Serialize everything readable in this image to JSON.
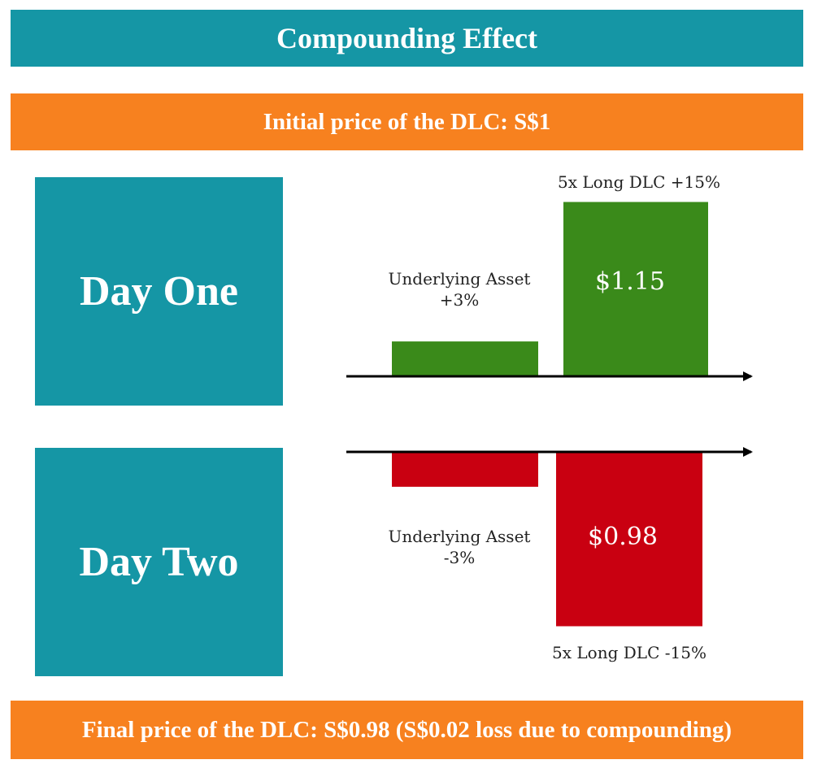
{
  "title": "Compounding Effect",
  "initial_price": "Initial price of the DLC: S$1",
  "final_price": "Final price of the DLC: S$0.98 (S$0.02 loss due to compounding)",
  "days": [
    {
      "label": "Day One",
      "underlying": {
        "label_line1": "Underlying Asset",
        "label_line2": "+3%",
        "change": 3
      },
      "dlc": {
        "label": "5x Long DLC +15%",
        "value_label": "$1.15",
        "change": 15
      }
    },
    {
      "label": "Day Two",
      "underlying": {
        "label_line1": "Underlying Asset",
        "label_line2": "-3%",
        "change": -3
      },
      "dlc": {
        "label": "5x Long DLC -15%",
        "value_label": "$0.98",
        "change": -15
      }
    }
  ],
  "colors": {
    "teal": "#1596a5",
    "orange": "#f7811f",
    "up_green": "#3a8a1a",
    "down_red": "#c90011",
    "axis": "#000000"
  }
}
